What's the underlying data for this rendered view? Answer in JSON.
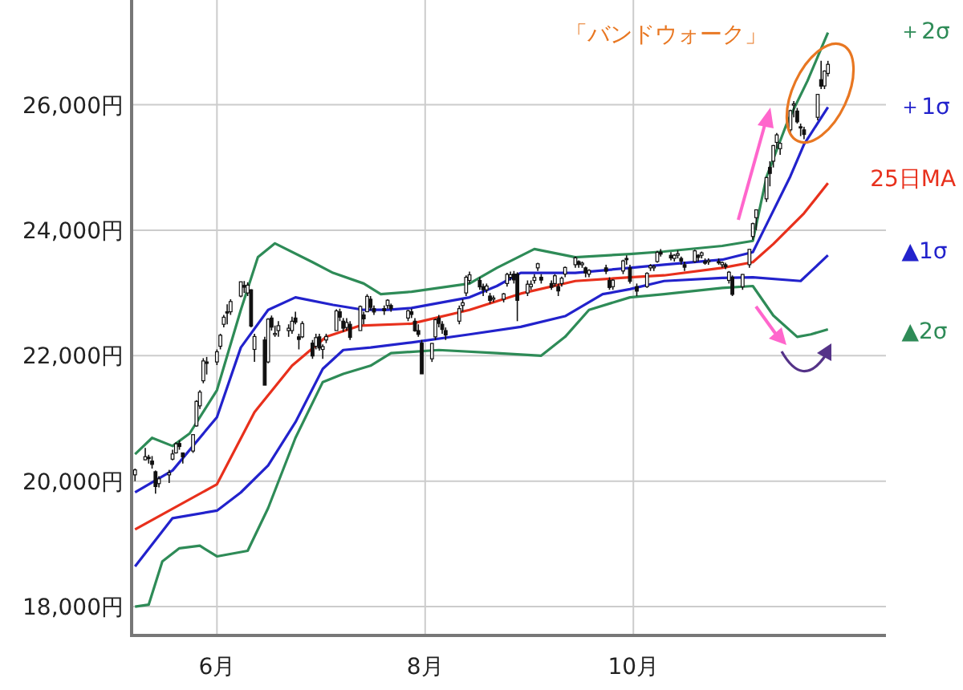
{
  "chart_data": {
    "type": "candlestick",
    "annotations": [
      "「バンドウォーク」"
    ],
    "xlim": [
      "--05-07",
      "--12-14"
    ],
    "xticks": [
      {
        "value": "--06-01",
        "label": "6月"
      },
      {
        "value": "--08-01",
        "label": "8月"
      },
      {
        "value": "--10-01",
        "label": "10月"
      }
    ],
    "ylim": [
      17540,
      27670
    ],
    "yticks": [
      {
        "value": 18000,
        "label": "18,000円"
      },
      {
        "value": 20000,
        "label": "20,000円"
      },
      {
        "value": 22000,
        "label": "22,000円"
      },
      {
        "value": 24000,
        "label": "24,000円"
      },
      {
        "value": 26000,
        "label": "26,000円"
      }
    ],
    "grid": true,
    "legend": false,
    "x": [
      "--05-08",
      "--05-11",
      "--05-12",
      "--05-13",
      "--05-14",
      "--05-15",
      "--05-18",
      "--05-19",
      "--05-20",
      "--05-21",
      "--05-22",
      "--05-25",
      "--05-26",
      "--05-27",
      "--05-28",
      "--05-29",
      "--06-01",
      "--06-02",
      "--06-03",
      "--06-04",
      "--06-05",
      "--06-08",
      "--06-09",
      "--06-10",
      "--06-11",
      "--06-12",
      "--06-15",
      "--06-16",
      "--06-17",
      "--06-18",
      "--06-19",
      "--06-22",
      "--06-23",
      "--06-24",
      "--06-25",
      "--06-26",
      "--06-29",
      "--06-30",
      "--07-01",
      "--07-02",
      "--07-03",
      "--07-06",
      "--07-07",
      "--07-08",
      "--07-09",
      "--07-10",
      "--07-13",
      "--07-14",
      "--07-15",
      "--07-16",
      "--07-17",
      "--07-20",
      "--07-21",
      "--07-22",
      "--07-27",
      "--07-28",
      "--07-29",
      "--07-30",
      "--07-31",
      "--08-03",
      "--08-04",
      "--08-05",
      "--08-06",
      "--08-07",
      "--08-11",
      "--08-12",
      "--08-13",
      "--08-14",
      "--08-17",
      "--08-18",
      "--08-19",
      "--08-20",
      "--08-21",
      "--08-24",
      "--08-25",
      "--08-26",
      "--08-27",
      "--08-28",
      "--08-31",
      "--09-01",
      "--09-02",
      "--09-03",
      "--09-04",
      "--09-07",
      "--09-08",
      "--09-09",
      "--09-10",
      "--09-11",
      "--09-14",
      "--09-15",
      "--09-16",
      "--09-17",
      "--09-18",
      "--09-23",
      "--09-24",
      "--09-25",
      "--09-28",
      "--09-29",
      "--09-30",
      "--10-02",
      "--10-05",
      "--10-06",
      "--10-07",
      "--10-08",
      "--10-09",
      "--10-12",
      "--10-13",
      "--10-14",
      "--10-15",
      "--10-16",
      "--10-19",
      "--10-20",
      "--10-21",
      "--10-22",
      "--10-23",
      "--10-26",
      "--10-27",
      "--10-28",
      "--10-29",
      "--10-30",
      "--11-02",
      "--11-04",
      "--11-05",
      "--11-06",
      "--11-09",
      "--11-10",
      "--11-11",
      "--11-12",
      "--11-13",
      "--11-16",
      "--11-17",
      "--11-18",
      "--11-19",
      "--11-20",
      "--11-24",
      "--11-25",
      "--11-26",
      "--11-27"
    ],
    "ohlc": [
      [
        20100,
        20200,
        20000,
        20179
      ],
      [
        20340,
        20530,
        20330,
        20390
      ],
      [
        20380,
        20420,
        20280,
        20366
      ],
      [
        20320,
        20400,
        20200,
        20267
      ],
      [
        20150,
        20170,
        19800,
        19914
      ],
      [
        19960,
        20080,
        19900,
        20037
      ],
      [
        20100,
        20180,
        19970,
        20133
      ],
      [
        20350,
        20500,
        20330,
        20433
      ],
      [
        20450,
        20620,
        20440,
        20595
      ],
      [
        20600,
        20650,
        20500,
        20552
      ],
      [
        20450,
        20450,
        20280,
        20388
      ],
      [
        20480,
        20750,
        20450,
        20741
      ],
      [
        20880,
        21290,
        20870,
        21271
      ],
      [
        21200,
        21450,
        21150,
        21419
      ],
      [
        21600,
        21960,
        21560,
        21916
      ],
      [
        21900,
        21980,
        21700,
        21877
      ],
      [
        21900,
        22100,
        21850,
        22062
      ],
      [
        22150,
        22350,
        22100,
        22325
      ],
      [
        22500,
        22650,
        22450,
        22613
      ],
      [
        22700,
        22820,
        22500,
        22695
      ],
      [
        22700,
        22900,
        22650,
        22863
      ],
      [
        22950,
        23180,
        22930,
        23178
      ],
      [
        23120,
        23190,
        23000,
        23091
      ],
      [
        23000,
        23170,
        22950,
        23124
      ],
      [
        23050,
        23060,
        22450,
        22472
      ],
      [
        22100,
        22350,
        21900,
        22305
      ],
      [
        22250,
        22300,
        21530,
        21530
      ],
      [
        21900,
        22600,
        21880,
        22582
      ],
      [
        22600,
        22640,
        22400,
        22455
      ],
      [
        22350,
        22480,
        22300,
        22355
      ],
      [
        22400,
        22550,
        22300,
        22478
      ],
      [
        22400,
        22500,
        22300,
        22437
      ],
      [
        22400,
        22620,
        22350,
        22549
      ],
      [
        22600,
        22700,
        22500,
        22534
      ],
      [
        22300,
        22350,
        22100,
        22259
      ],
      [
        22300,
        22550,
        22280,
        22512
      ],
      [
        22200,
        22250,
        21950,
        21995
      ],
      [
        22150,
        22350,
        22100,
        22288
      ],
      [
        22300,
        22350,
        22080,
        22122
      ],
      [
        22100,
        22180,
        21950,
        22145
      ],
      [
        22250,
        22350,
        22200,
        22306
      ],
      [
        22400,
        22740,
        22400,
        22714
      ],
      [
        22700,
        22750,
        22550,
        22614
      ],
      [
        22550,
        22600,
        22380,
        22438
      ],
      [
        22450,
        22600,
        22400,
        22529
      ],
      [
        22500,
        22550,
        22250,
        22291
      ],
      [
        22400,
        22800,
        22400,
        22784
      ],
      [
        22650,
        22700,
        22500,
        22587
      ],
      [
        22700,
        22980,
        22700,
        22945
      ],
      [
        22900,
        22950,
        22720,
        22770
      ],
      [
        22750,
        22800,
        22650,
        22696
      ],
      [
        22750,
        22800,
        22650,
        22717
      ],
      [
        22800,
        22900,
        22750,
        22884
      ],
      [
        22800,
        22830,
        22700,
        22751
      ],
      [
        22600,
        22730,
        22550,
        22715
      ],
      [
        22700,
        22750,
        22600,
        22657
      ],
      [
        22550,
        22600,
        22380,
        22397
      ],
      [
        22400,
        22500,
        22300,
        22339
      ],
      [
        22200,
        22250,
        21710,
        21710
      ],
      [
        21950,
        22200,
        21900,
        22195
      ],
      [
        22300,
        22590,
        22250,
        22573
      ],
      [
        22600,
        22650,
        22450,
        22514
      ],
      [
        22500,
        22550,
        22350,
        22418
      ],
      [
        22400,
        22450,
        22250,
        22329
      ],
      [
        22550,
        22800,
        22500,
        22750
      ],
      [
        22800,
        22900,
        22700,
        22843
      ],
      [
        23000,
        23280,
        22950,
        23250
      ],
      [
        23200,
        23340,
        23150,
        23289
      ],
      [
        23200,
        23250,
        23050,
        23097
      ],
      [
        23100,
        23150,
        22950,
        23051
      ],
      [
        23050,
        23150,
        23000,
        23110
      ],
      [
        22950,
        23000,
        22830,
        22880
      ],
      [
        22900,
        22960,
        22850,
        22920
      ],
      [
        22900,
        23000,
        22850,
        22985
      ],
      [
        23150,
        23320,
        23100,
        23296
      ],
      [
        23250,
        23340,
        23200,
        23290
      ],
      [
        23300,
        23350,
        23150,
        23208
      ],
      [
        23300,
        23330,
        22550,
        22882
      ],
      [
        23000,
        23200,
        22950,
        23139
      ],
      [
        23100,
        23200,
        23050,
        23138
      ],
      [
        23200,
        23300,
        23150,
        23247
      ],
      [
        23400,
        23480,
        23350,
        23465
      ],
      [
        23250,
        23300,
        23150,
        23205
      ],
      [
        23150,
        23200,
        23050,
        23089
      ],
      [
        23150,
        23300,
        23100,
        23274
      ],
      [
        23100,
        23150,
        22950,
        23032
      ],
      [
        23150,
        23260,
        23100,
        23235
      ],
      [
        23300,
        23420,
        23250,
        23406
      ],
      [
        23450,
        23580,
        23400,
        23559
      ],
      [
        23500,
        23520,
        23400,
        23454
      ],
      [
        23450,
        23500,
        23400,
        23475
      ],
      [
        23400,
        23420,
        23250,
        23319
      ],
      [
        23300,
        23380,
        23250,
        23360
      ],
      [
        23400,
        23450,
        23300,
        23346
      ],
      [
        23200,
        23250,
        23050,
        23087
      ],
      [
        23100,
        23220,
        23050,
        23204
      ],
      [
        23350,
        23530,
        23300,
        23511
      ],
      [
        23550,
        23600,
        23450,
        23539
      ],
      [
        23400,
        23450,
        23150,
        23185
      ],
      [
        23100,
        23150,
        22950,
        23029
      ],
      [
        23100,
        23330,
        23080,
        23312
      ],
      [
        23400,
        23460,
        23350,
        23433
      ],
      [
        23400,
        23450,
        23350,
        23422
      ],
      [
        23500,
        23670,
        23480,
        23647
      ],
      [
        23650,
        23700,
        23580,
        23619
      ],
      [
        23600,
        23650,
        23520,
        23558
      ],
      [
        23550,
        23620,
        23500,
        23601
      ],
      [
        23600,
        23680,
        23550,
        23626
      ],
      [
        23550,
        23580,
        23450,
        23507
      ],
      [
        23450,
        23500,
        23350,
        23410
      ],
      [
        23500,
        23690,
        23480,
        23671
      ],
      [
        23600,
        23620,
        23500,
        23567
      ],
      [
        23600,
        23660,
        23550,
        23639
      ],
      [
        23500,
        23550,
        23450,
        23474
      ],
      [
        23500,
        23550,
        23450,
        23516
      ],
      [
        23500,
        23550,
        23450,
        23494
      ],
      [
        23450,
        23500,
        23400,
        23485
      ],
      [
        23450,
        23480,
        23380,
        23418
      ],
      [
        23200,
        23350,
        23150,
        23331
      ],
      [
        23250,
        23280,
        22950,
        22977
      ],
      [
        23100,
        23300,
        23050,
        23295
      ],
      [
        23450,
        23700,
        23400,
        23695
      ],
      [
        23900,
        24120,
        23850,
        24105
      ],
      [
        24200,
        24330,
        24000,
        24325
      ],
      [
        24500,
        24850,
        24450,
        24839
      ],
      [
        25000,
        25100,
        24700,
        24905
      ],
      [
        25100,
        25360,
        25000,
        25349
      ],
      [
        25400,
        25550,
        25300,
        25520
      ],
      [
        25300,
        25400,
        25200,
        25385
      ],
      [
        25600,
        25920,
        25550,
        25906
      ],
      [
        26000,
        26060,
        25800,
        26014
      ],
      [
        25900,
        25950,
        25700,
        25728
      ],
      [
        25650,
        25700,
        25500,
        25634
      ],
      [
        25600,
        25650,
        25450,
        25527
      ],
      [
        25800,
        26170,
        25750,
        26165
      ],
      [
        26400,
        26700,
        26250,
        26297
      ],
      [
        26300,
        26550,
        26250,
        26537
      ],
      [
        26500,
        26700,
        26450,
        26644
      ]
    ],
    "series": [
      {
        "type": "line",
        "name": "＋2σ",
        "color": "#2e8b57",
        "x": [
          "--05-08",
          "--05-13",
          "--05-19",
          "--05-24",
          "--06-01",
          "--06-08",
          "--06-13",
          "--06-18",
          "--06-29",
          "--07-05",
          "--07-14",
          "--07-19",
          "--07-28",
          "--08-14",
          "--08-22",
          "--09-02",
          "--09-14",
          "--09-30",
          "--10-10",
          "--10-27",
          "--11-05",
          "--11-09",
          "--11-15",
          "--11-21",
          "--11-27"
        ],
        "values": [
          20430,
          20690,
          20560,
          20760,
          21450,
          22730,
          23570,
          23790,
          23490,
          23320,
          23150,
          22980,
          23020,
          23150,
          23400,
          23700,
          23570,
          23620,
          23660,
          23750,
          23830,
          24850,
          25710,
          26380,
          27150
        ]
      },
      {
        "type": "line",
        "name": "＋1σ",
        "color": "#2222cc",
        "x": [
          "--05-08",
          "--05-19",
          "--06-01",
          "--06-08",
          "--06-16",
          "--06-24",
          "--07-05",
          "--07-14",
          "--07-21",
          "--07-28",
          "--08-14",
          "--08-22",
          "--08-29",
          "--09-14",
          "--09-30",
          "--10-10",
          "--10-27",
          "--11-05",
          "--11-09",
          "--11-16",
          "--11-20",
          "--11-27"
        ],
        "values": [
          19820,
          20170,
          21020,
          22130,
          22730,
          22930,
          22810,
          22730,
          22730,
          22760,
          22930,
          23110,
          23320,
          23320,
          23400,
          23450,
          23530,
          23650,
          24090,
          24860,
          25370,
          25960
        ]
      },
      {
        "type": "line",
        "name": "25日MA",
        "color": "#e8301c",
        "x": [
          "--05-08",
          "--06-01",
          "--06-12",
          "--06-23",
          "--07-03",
          "--07-13",
          "--07-28",
          "--08-14",
          "--08-29",
          "--09-14",
          "--09-30",
          "--10-10",
          "--10-27",
          "--11-05",
          "--11-11",
          "--11-20",
          "--11-27"
        ],
        "values": [
          19230,
          19950,
          21100,
          21840,
          22300,
          22480,
          22510,
          22730,
          22990,
          23190,
          23250,
          23280,
          23400,
          23490,
          23780,
          24270,
          24750
        ]
      },
      {
        "type": "line",
        "name": "▲1σ",
        "color": "#2222cc",
        "x": [
          "--05-08",
          "--05-19",
          "--06-01",
          "--06-08",
          "--06-16",
          "--06-24",
          "--07-02",
          "--07-08",
          "--07-16",
          "--07-28",
          "--08-14",
          "--08-29",
          "--09-11",
          "--09-22",
          "--09-30",
          "--10-10",
          "--10-27",
          "--11-05",
          "--11-19",
          "--11-27"
        ],
        "values": [
          18640,
          19410,
          19530,
          19820,
          20250,
          20940,
          21790,
          22090,
          22130,
          22210,
          22340,
          22460,
          22630,
          22980,
          23060,
          23190,
          23240,
          23250,
          23190,
          23600
        ]
      },
      {
        "type": "line",
        "name": "▲2σ",
        "color": "#2e8b57",
        "x": [
          "--05-08",
          "--05-12",
          "--05-16",
          "--05-21",
          "--05-27",
          "--06-01",
          "--06-10",
          "--06-16",
          "--06-24",
          "--07-02",
          "--07-08",
          "--07-16",
          "--07-22",
          "--08-05",
          "--08-22",
          "--09-04",
          "--09-11",
          "--09-18",
          "--09-30",
          "--10-10",
          "--10-27",
          "--11-05",
          "--11-11",
          "--11-18",
          "--11-22",
          "--11-27"
        ],
        "values": [
          18000,
          18030,
          18720,
          18930,
          18970,
          18800,
          18890,
          19570,
          20690,
          21580,
          21710,
          21840,
          22040,
          22090,
          22040,
          22000,
          22300,
          22730,
          22930,
          22980,
          23080,
          23110,
          22640,
          22300,
          22340,
          22420
        ]
      }
    ]
  }
}
